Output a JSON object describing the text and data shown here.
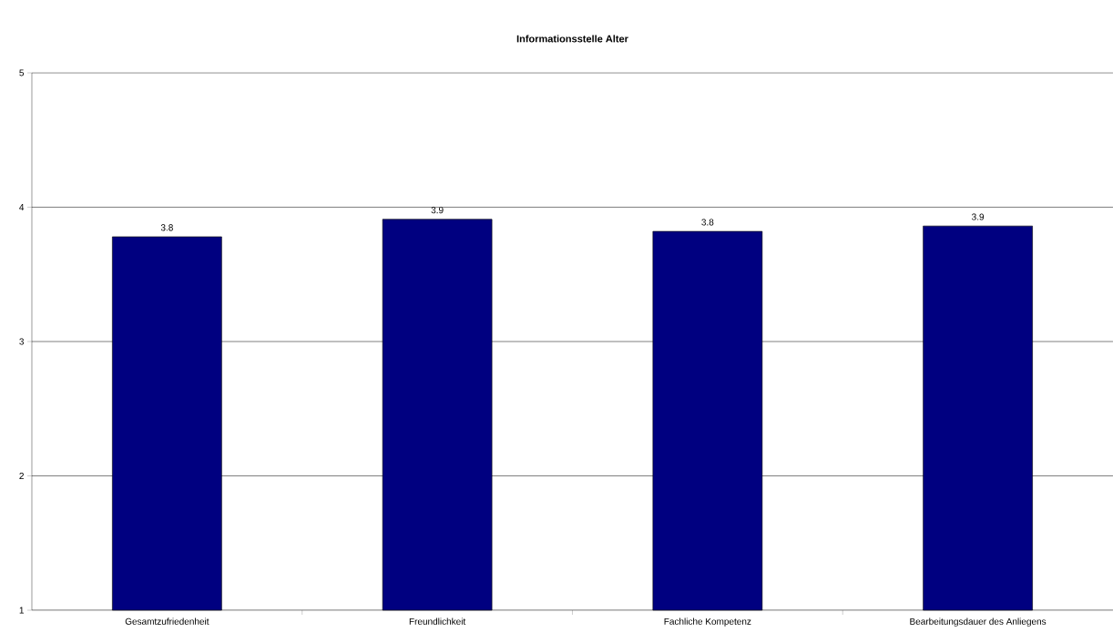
{
  "chart_data": {
    "type": "bar",
    "title": "Informationsstelle Alter",
    "categories": [
      "Gesamtzufriedenheit",
      "Freundlichkeit",
      "Fachliche Kompetenz",
      "Bearbeitungsdauer des Anliegens"
    ],
    "values": [
      3.78,
      3.91,
      3.82,
      3.86
    ],
    "value_labels": [
      "3.8",
      "3.9",
      "3.8",
      "3.9"
    ],
    "color": "#000080",
    "ylim": [
      1,
      5
    ],
    "yticks": [
      1,
      2,
      3,
      4,
      5
    ],
    "grid": "y"
  }
}
